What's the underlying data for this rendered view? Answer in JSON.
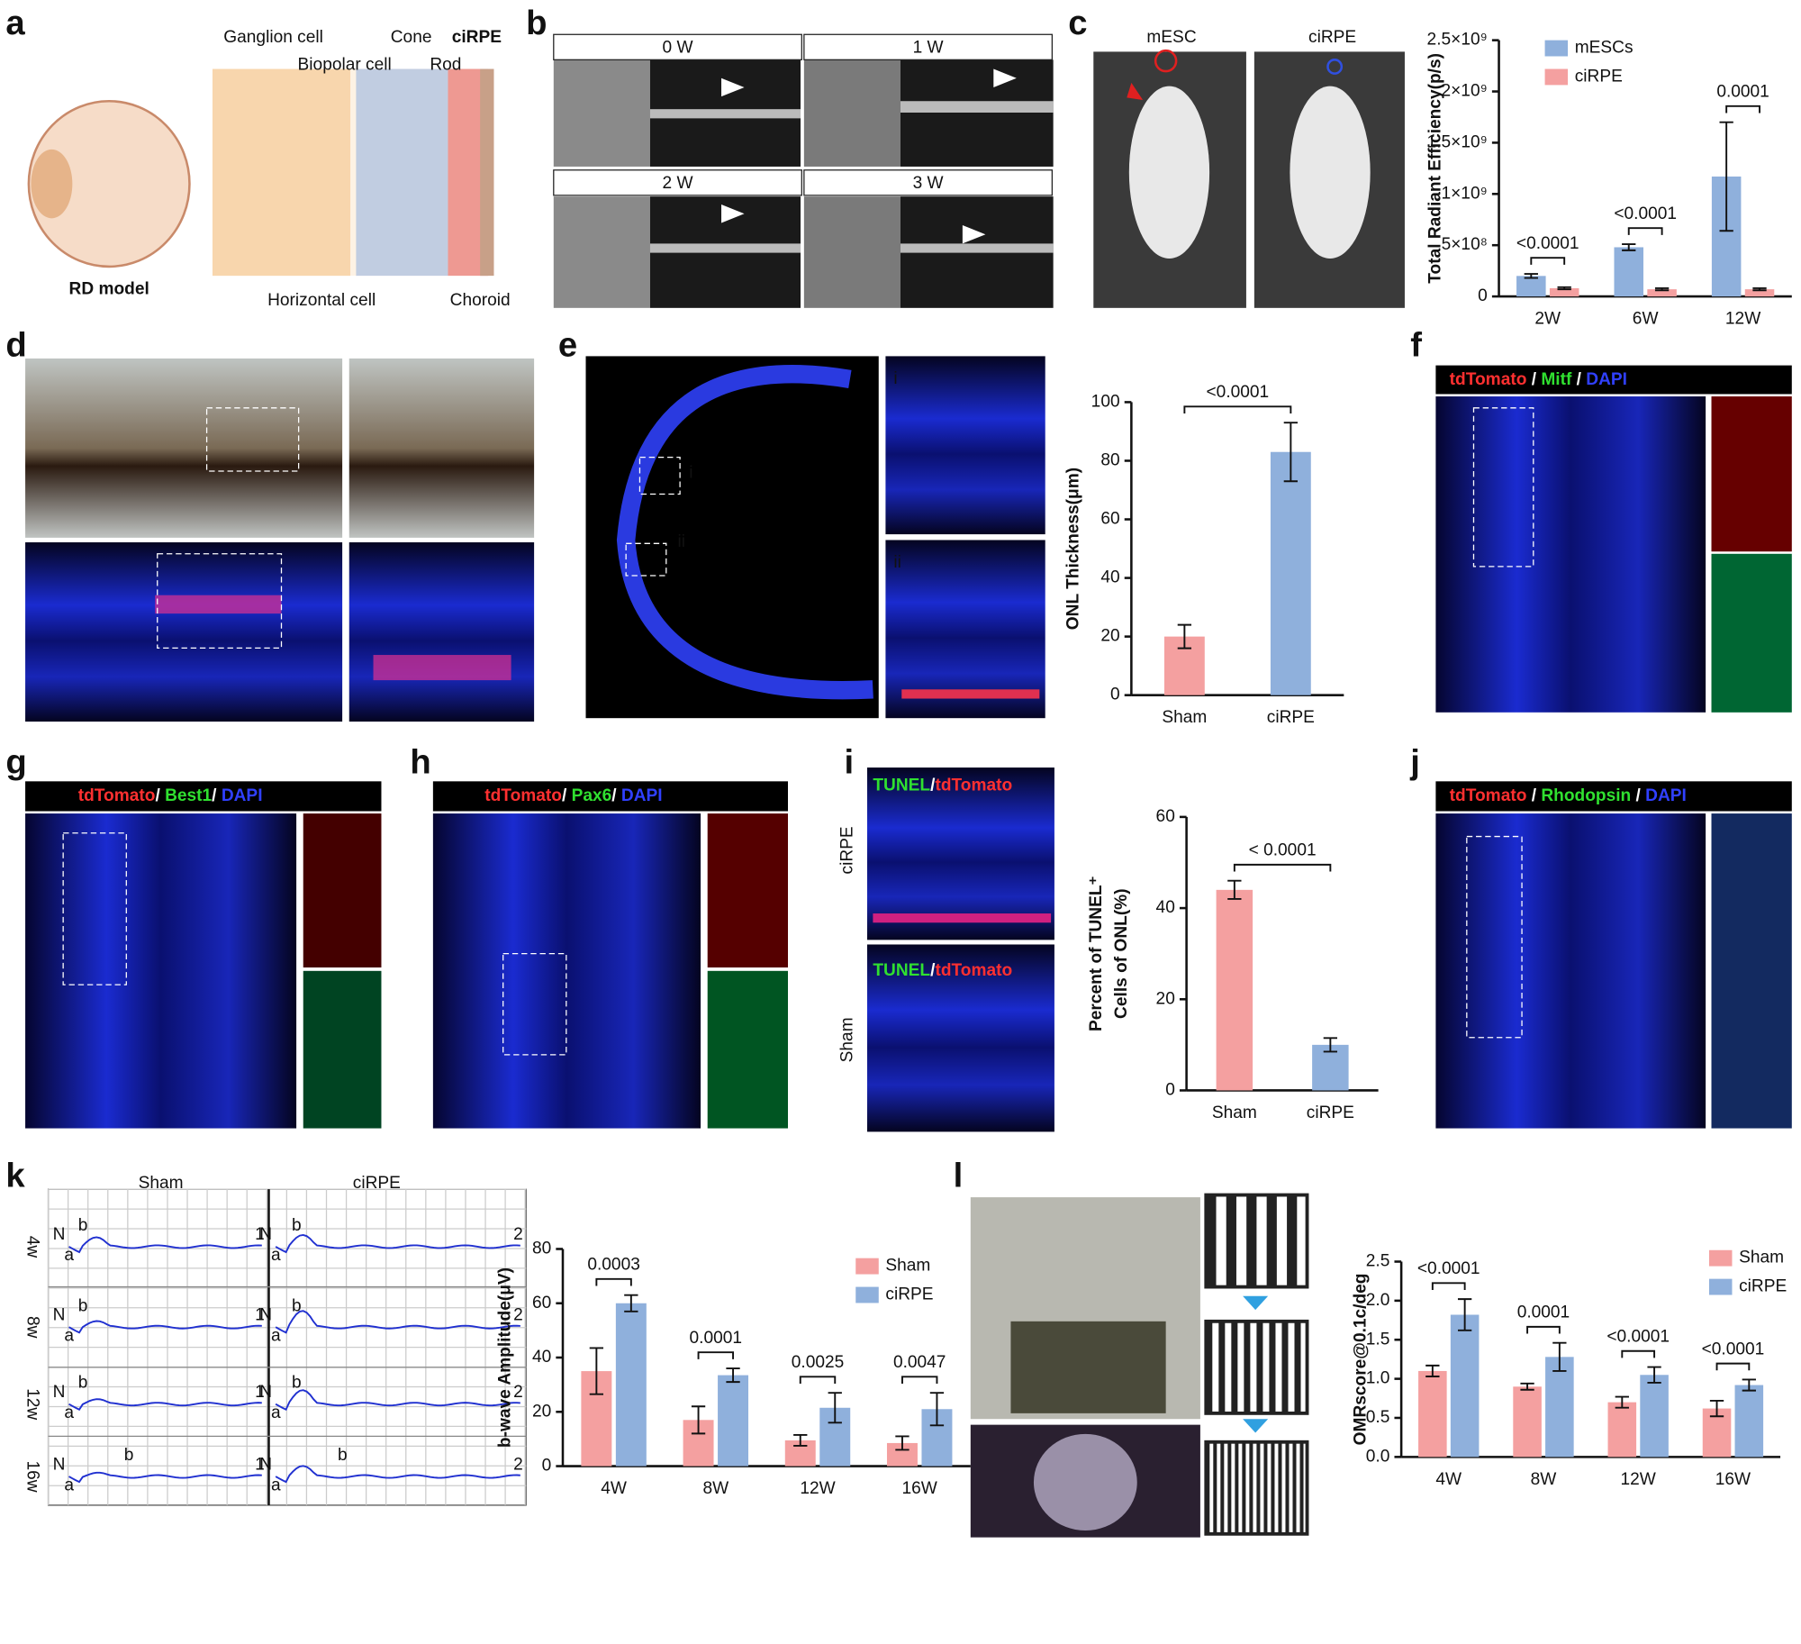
{
  "panel_letters": [
    "a",
    "b",
    "c",
    "d",
    "e",
    "f",
    "g",
    "h",
    "i",
    "j",
    "k",
    "l"
  ],
  "panel_a": {
    "labels": [
      "Ganglion cell",
      "Biopolar cell",
      "Cone",
      "ciRPE",
      "Rod",
      "Horizontal cell",
      "Choroid"
    ],
    "model": "RD model"
  },
  "panel_b": {
    "timepoints": [
      "0 W",
      "1 W",
      "2 W",
      "3 W"
    ]
  },
  "panel_c": {
    "images": [
      "mESC",
      "ciRPE"
    ]
  },
  "panel_e": {
    "insets": [
      "i",
      "ii"
    ]
  },
  "stain_headers": {
    "f": {
      "parts": [
        "tdTomato",
        " / ",
        "Mitf",
        " / ",
        "DAPI"
      ],
      "colors": [
        "#ff3030",
        "#ffffff",
        "#30e030",
        "#ffffff",
        "#3040ff"
      ]
    },
    "g": {
      "parts": [
        "tdTomato",
        "/ ",
        "Best1",
        "/ ",
        "DAPI"
      ],
      "colors": [
        "#ff3030",
        "#ffffff",
        "#30e030",
        "#ffffff",
        "#3040ff"
      ]
    },
    "h": {
      "parts": [
        "tdTomato",
        "/ ",
        "Pax6",
        "/ ",
        "DAPI"
      ],
      "colors": [
        "#ff3030",
        "#ffffff",
        "#30e030",
        "#ffffff",
        "#3040ff"
      ]
    },
    "j": {
      "parts": [
        "tdTomato",
        " / ",
        "Rhodopsin",
        " / ",
        "DAPI"
      ],
      "colors": [
        "#ff3030",
        "#ffffff",
        "#30e030",
        "#ffffff",
        "#3040ff"
      ]
    }
  },
  "panel_i": {
    "rows": [
      "ciRPE",
      "Sham"
    ],
    "stain": {
      "parts": [
        "TUNEL",
        "/",
        "tdTomato"
      ],
      "colors": [
        "#30e030",
        "#ffffff",
        "#ff3030"
      ]
    }
  },
  "panel_k": {
    "columns": [
      "Sham",
      "ciRPE"
    ],
    "rows": [
      "4w",
      "8w",
      "12w",
      "16w"
    ],
    "marks": [
      "N",
      "a",
      "b",
      "1",
      "2"
    ]
  },
  "chart_data": [
    {
      "type": "bar",
      "y_label": "Total Radiant Efficiency(p/s)",
      "categories": [
        "2W",
        "6W",
        "12W"
      ],
      "series": [
        {
          "name": "mESCs",
          "color": "#8fb0dc",
          "values": [
            200000000,
            480000000,
            1170000000
          ],
          "errors": [
            20000000,
            30000000,
            530000000
          ]
        },
        {
          "name": "ciRPE",
          "color": "#f4a0a0",
          "values": [
            80000000,
            70000000,
            70000000
          ],
          "errors": [
            10000000,
            10000000,
            10000000
          ]
        }
      ],
      "annotations": [
        "<0.0001",
        "<0.0001",
        "0.0001"
      ],
      "ylim": [
        0,
        2500000000
      ],
      "yticks": [
        0,
        {
          "value": 500000000,
          "label": "5×10⁸"
        },
        {
          "value": 1000000000,
          "label": "1×10⁹"
        },
        {
          "value": 1500000000,
          "label": "1.5×10⁹"
        },
        {
          "value": 2000000000,
          "label": "2×10⁹"
        },
        {
          "value": 2500000000,
          "label": "2.5×10⁹"
        }
      ],
      "legend": "upper left"
    },
    {
      "type": "bar",
      "y_label": "ONL Thickness(μm)",
      "categories": [
        "Sham",
        "ciRPE"
      ],
      "values": [
        20,
        83
      ],
      "errors": [
        4,
        10
      ],
      "colors": [
        "#f4a0a0",
        "#8fb0dc"
      ],
      "annotation": "<0.0001",
      "ylim": [
        0,
        100
      ],
      "yticks": [
        0,
        20,
        40,
        60,
        80,
        100
      ]
    },
    {
      "type": "bar",
      "y_label": [
        "Percent of TUNEL⁺",
        "Cells of ONL(%)"
      ],
      "categories": [
        "Sham",
        "ciRPE"
      ],
      "values": [
        44,
        10
      ],
      "errors": [
        2,
        1.5
      ],
      "colors": [
        "#f4a0a0",
        "#8fb0dc"
      ],
      "annotation": "< 0.0001",
      "ylim": [
        0,
        60
      ],
      "yticks": [
        0,
        20,
        40,
        60
      ]
    },
    {
      "type": "bar",
      "y_label": "b-wave Amplitude(μV)",
      "categories": [
        "4W",
        "8W",
        "12W",
        "16W"
      ],
      "series": [
        {
          "name": "Sham",
          "color": "#f4a0a0",
          "values": [
            35,
            17,
            9.5,
            8.5
          ],
          "errors": [
            8.5,
            5,
            2,
            2.5
          ]
        },
        {
          "name": "ciRPE",
          "color": "#8fb0dc",
          "values": [
            60,
            33.5,
            21.5,
            21
          ],
          "errors": [
            3,
            2.5,
            5.5,
            6
          ]
        }
      ],
      "annotations": [
        "0.0003",
        "0.0001",
        "0.0025",
        "0.0047"
      ],
      "ylim": [
        0,
        80
      ],
      "yticks": [
        0,
        20,
        40,
        60,
        80
      ],
      "legend": "upper right"
    },
    {
      "type": "bar",
      "y_label": "OMRscore@0.1c/deg",
      "categories": [
        "4W",
        "8W",
        "12W",
        "16W"
      ],
      "series": [
        {
          "name": "Sham",
          "color": "#f4a0a0",
          "values": [
            1.1,
            0.9,
            0.7,
            0.62
          ],
          "errors": [
            0.07,
            0.04,
            0.07,
            0.1
          ]
        },
        {
          "name": "ciRPE",
          "color": "#8fb0dc",
          "values": [
            1.82,
            1.28,
            1.05,
            0.92
          ],
          "errors": [
            0.2,
            0.18,
            0.1,
            0.07
          ]
        }
      ],
      "annotations": [
        "<0.0001",
        "0.0001",
        "<0.0001",
        "<0.0001"
      ],
      "ylim": [
        0,
        2.5
      ],
      "yticks": [
        {
          "value": 0,
          "label": "0.0"
        },
        0.5,
        {
          "value": 1,
          "label": "1.0"
        },
        1.5,
        {
          "value": 2,
          "label": "2.0"
        },
        2.5
      ],
      "legend": "upper right"
    }
  ]
}
